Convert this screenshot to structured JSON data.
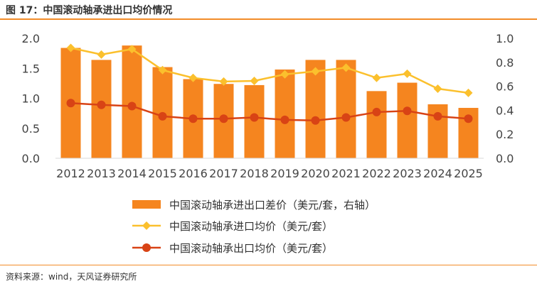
{
  "figure": {
    "title": "图 17：中国滚动轴承进出口均价情况",
    "source": "资料来源：wind，天风证券研究所"
  },
  "colors": {
    "bar": "#f5851f",
    "import_line": "#fbc02d",
    "export_line": "#d84315",
    "rule": "#f28c28"
  },
  "chart_data": {
    "type": "bar",
    "categories": [
      "2012",
      "2013",
      "2014",
      "2015",
      "2016",
      "2017",
      "2018",
      "2019",
      "2020",
      "2021",
      "2022",
      "2023",
      "2024",
      "2025"
    ],
    "y_left": {
      "ylim": [
        0,
        2.0
      ],
      "ticks": [
        "0.0",
        "0.5",
        "1.0",
        "1.5",
        "2.0"
      ]
    },
    "y_right": {
      "ylim": [
        0,
        1.0
      ],
      "ticks": [
        "0.0",
        "0.2",
        "0.4",
        "0.6",
        "0.8",
        "1.0"
      ]
    },
    "grid": false,
    "legend_position": "bottom",
    "series": [
      {
        "name": "中国滚动轴承进出口差价（美元/套，右轴）",
        "type": "bar",
        "axis": "right",
        "values": [
          0.92,
          0.82,
          0.94,
          0.76,
          0.66,
          0.62,
          0.61,
          0.74,
          0.82,
          0.82,
          0.56,
          0.63,
          0.45,
          0.42
        ]
      },
      {
        "name": "中国滚动轴承进口均价（美元/套）",
        "type": "line",
        "marker": "diamond",
        "axis": "left",
        "values": [
          1.84,
          1.73,
          1.82,
          1.47,
          1.34,
          1.28,
          1.29,
          1.4,
          1.45,
          1.51,
          1.34,
          1.41,
          1.16,
          1.09
        ]
      },
      {
        "name": "中国滚动轴承出口均价（美元/套）",
        "type": "line",
        "marker": "circle",
        "axis": "left",
        "values": [
          0.92,
          0.89,
          0.87,
          0.7,
          0.66,
          0.66,
          0.68,
          0.64,
          0.63,
          0.68,
          0.77,
          0.79,
          0.7,
          0.66
        ]
      }
    ]
  }
}
